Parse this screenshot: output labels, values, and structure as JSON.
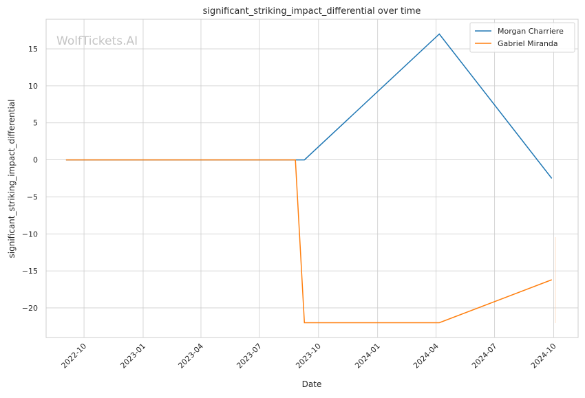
{
  "watermark": "WolfTickets.AI",
  "chart_data": {
    "type": "line",
    "title": "significant_striking_impact_differential over time",
    "xlabel": "Date",
    "ylabel": "significant_striking_impact_differential",
    "xlim": [
      "2022-08-03",
      "2024-11-08"
    ],
    "ylim": [
      -24,
      19
    ],
    "x_ticks": [
      "2022-10",
      "2023-01",
      "2023-04",
      "2023-07",
      "2023-10",
      "2024-01",
      "2024-04",
      "2024-07",
      "2024-10"
    ],
    "y_ticks": [
      15,
      10,
      5,
      0,
      -5,
      -10,
      -15,
      -20
    ],
    "y_tick_labels": [
      "15",
      "10",
      "5",
      "0",
      "−5",
      "−10",
      "−15",
      "−20"
    ],
    "grid": true,
    "legend": "top-right",
    "series": [
      {
        "name": "Morgan Charriere",
        "color": "#1f77b4",
        "x": [
          "2022-09-03",
          "2023-09-09",
          "2024-04-06",
          "2024-09-28"
        ],
        "values": [
          0,
          0,
          17,
          -2.5
        ]
      },
      {
        "name": "Gabriel Miranda",
        "color": "#ff7f0e",
        "x": [
          "2022-09-03",
          "2023-08-26",
          "2023-09-09",
          "2024-04-06",
          "2024-09-28"
        ],
        "values": [
          0,
          0,
          -22,
          -22,
          -16.2
        ]
      }
    ]
  }
}
